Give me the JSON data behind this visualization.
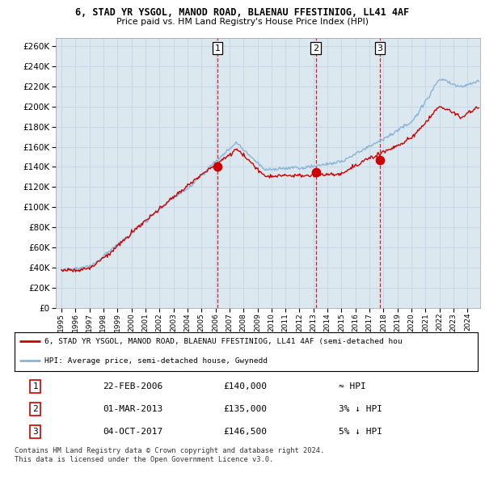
{
  "title": "6, STAD YR YSGOL, MANOD ROAD, BLAENAU FFESTINIOG, LL41 4AF",
  "subtitle": "Price paid vs. HM Land Registry's House Price Index (HPI)",
  "ytick_values": [
    0,
    20000,
    40000,
    60000,
    80000,
    100000,
    120000,
    140000,
    160000,
    180000,
    200000,
    220000,
    240000,
    260000
  ],
  "ylim": [
    0,
    268000
  ],
  "xlim_start": 1994.6,
  "xlim_end": 2024.9,
  "sale_dates_year": [
    2006.14,
    2013.17,
    2017.75
  ],
  "sale_prices": [
    140000,
    135000,
    146500
  ],
  "hpi_color": "#8ab4d4",
  "sale_color": "#cc0000",
  "grid_color": "#c8d8e8",
  "chart_bg": "#dce8f0",
  "dashed_color": "#cc0000",
  "legend_label_red": "6, STAD YR YSGOL, MANOD ROAD, BLAENAU FFESTINIOG, LL41 4AF (semi-detached hou",
  "legend_label_blue": "HPI: Average price, semi-detached house, Gwynedd",
  "table_rows": [
    [
      "1",
      "22-FEB-2006",
      "£140,000",
      "≈ HPI"
    ],
    [
      "2",
      "01-MAR-2013",
      "£135,000",
      "3% ↓ HPI"
    ],
    [
      "3",
      "04-OCT-2017",
      "£146,500",
      "5% ↓ HPI"
    ]
  ],
  "footer": "Contains HM Land Registry data © Crown copyright and database right 2024.\nThis data is licensed under the Open Government Licence v3.0.",
  "xtick_years": [
    1995,
    1996,
    1997,
    1998,
    1999,
    2000,
    2001,
    2002,
    2003,
    2004,
    2005,
    2006,
    2007,
    2008,
    2009,
    2010,
    2011,
    2012,
    2013,
    2014,
    2015,
    2016,
    2017,
    2018,
    2019,
    2020,
    2021,
    2022,
    2023,
    2024
  ]
}
